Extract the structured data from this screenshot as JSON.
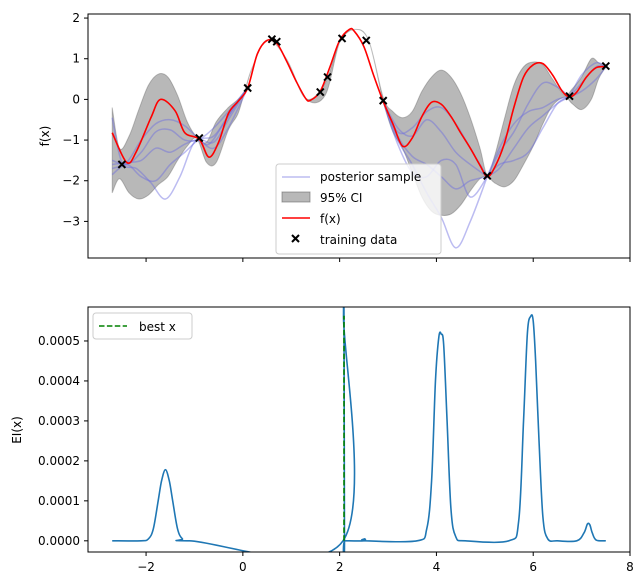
{
  "chart_data": [
    {
      "type": "line",
      "ylabel": "f(x)",
      "xlabel": "",
      "xlim": [
        -3.2,
        8.0
      ],
      "ylim": [
        -3.9,
        2.1
      ],
      "yticks": [
        -3,
        -2,
        -1,
        0,
        1,
        2
      ],
      "ytick_labels": [
        "−3",
        "−2",
        "−1",
        "0",
        "1",
        "2"
      ],
      "xticks": [
        -2,
        0,
        2,
        4,
        6,
        8
      ],
      "xtick_labels_shown": false,
      "legend_position": "lower center",
      "legend": {
        "sample": "posterior sample",
        "ci": "95% CI",
        "f": "f(x)",
        "train": "training data"
      },
      "colors": {
        "f": "#ff0000",
        "sample": "#6a6ae0",
        "ci": "#9a9a9a",
        "train": "#000000"
      },
      "f_curve": {
        "x": [
          -2.7,
          -2.4,
          -2.2,
          -1.9,
          -1.7,
          -1.4,
          -1.2,
          -0.9,
          -0.7,
          -0.5,
          -0.3,
          -0.1,
          0.1,
          0.3,
          0.5,
          0.7,
          0.9,
          1.1,
          1.3,
          1.4,
          1.6,
          1.8,
          2.0,
          2.2,
          2.3,
          2.5,
          2.7,
          2.9,
          3.1,
          3.3,
          3.5,
          3.7,
          3.9,
          4.1,
          4.3,
          4.5,
          4.7,
          4.9,
          5.05,
          5.2,
          5.4,
          5.6,
          5.8,
          6.0,
          6.2,
          6.4,
          6.6,
          6.75,
          6.9,
          7.1,
          7.3,
          7.5
        ],
        "y": [
          -0.82,
          -1.55,
          -1.28,
          -0.45,
          0.0,
          -0.28,
          -0.82,
          -0.98,
          -1.42,
          -1.05,
          -0.35,
          -0.05,
          0.28,
          1.12,
          1.45,
          1.38,
          0.95,
          0.45,
          0.02,
          -0.02,
          0.2,
          0.8,
          1.45,
          1.72,
          1.68,
          1.3,
          0.6,
          -0.05,
          -0.6,
          -1.15,
          -0.95,
          -0.42,
          -0.07,
          -0.12,
          -0.42,
          -0.82,
          -1.2,
          -1.62,
          -1.9,
          -1.68,
          -1.1,
          -0.2,
          0.55,
          0.85,
          0.88,
          0.6,
          0.2,
          0.06,
          0.18,
          0.55,
          0.78,
          0.8
        ]
      },
      "ci_band": {
        "x": [
          -2.7,
          -2.55,
          -2.35,
          -2.15,
          -1.95,
          -1.75,
          -1.55,
          -1.35,
          -1.15,
          -0.95,
          -0.75,
          -0.55,
          -0.3,
          -0.1,
          0.05,
          0.2,
          0.5,
          0.9,
          1.3,
          1.7,
          2.0,
          2.3,
          2.6,
          2.9,
          3.1,
          3.3,
          3.5,
          3.7,
          3.9,
          4.1,
          4.3,
          4.5,
          4.7,
          4.9,
          5.05,
          5.2,
          5.4,
          5.6,
          5.8,
          6.0,
          6.2,
          6.4,
          6.65,
          6.8,
          7.0,
          7.2,
          7.35,
          7.5
        ],
        "upper": [
          -0.2,
          -1.2,
          -0.9,
          -0.25,
          0.35,
          0.62,
          0.55,
          0.1,
          -0.55,
          -0.93,
          -1.05,
          -0.55,
          -0.2,
          0.0,
          0.25,
          0.8,
          1.46,
          1.0,
          0.02,
          0.4,
          1.4,
          1.72,
          1.45,
          0.05,
          -0.3,
          -0.45,
          -0.3,
          0.2,
          0.55,
          0.72,
          0.55,
          0.15,
          -0.45,
          -1.2,
          -1.86,
          -1.4,
          -0.5,
          0.35,
          0.8,
          0.92,
          0.85,
          0.5,
          0.1,
          0.25,
          0.55,
          1.0,
          0.9,
          0.8
        ],
        "lower": [
          -2.3,
          -1.95,
          -2.3,
          -2.45,
          -2.35,
          -2.1,
          -1.9,
          -1.5,
          -1.15,
          -0.96,
          -1.55,
          -1.55,
          -0.75,
          -0.35,
          0.25,
          0.8,
          1.46,
          1.0,
          0.02,
          0.1,
          1.4,
          1.72,
          1.45,
          -0.05,
          -0.8,
          -1.2,
          -1.8,
          -2.4,
          -2.75,
          -2.85,
          -2.82,
          -2.6,
          -2.25,
          -1.95,
          -1.9,
          -2.05,
          -2.15,
          -2.0,
          -1.6,
          -1.15,
          -0.6,
          -0.15,
          0.06,
          -0.1,
          -0.25,
          0.0,
          0.5,
          0.8
        ]
      },
      "posterior_samples": [
        {
          "x": [
            -2.7,
            -2.5,
            -2.2,
            -1.9,
            -1.6,
            -1.3,
            -1.0,
            -0.7,
            -0.4,
            -0.1,
            0.1
          ],
          "y": [
            -0.45,
            -1.55,
            -1.7,
            -2.05,
            -2.45,
            -1.9,
            -1.05,
            -1.1,
            -0.6,
            -0.05,
            0.28
          ]
        },
        {
          "x": [
            -2.7,
            -2.4,
            -2.1,
            -1.8,
            -1.5,
            -1.2,
            -0.9,
            -0.6,
            -0.3,
            0.1
          ],
          "y": [
            -1.5,
            -1.6,
            -1.3,
            -0.8,
            -0.75,
            -1.0,
            -0.98,
            -0.7,
            -0.3,
            0.28
          ]
        },
        {
          "x": [
            -2.7,
            -2.4,
            -2.1,
            -1.8,
            -1.5,
            -1.2,
            -0.9,
            -0.6,
            -0.3,
            0.1
          ],
          "y": [
            -1.7,
            -1.55,
            -1.0,
            -0.6,
            -0.5,
            -0.65,
            -0.98,
            -1.2,
            -0.7,
            0.28
          ]
        },
        {
          "x": [
            -2.7,
            -2.4,
            -2.1,
            -1.8,
            -1.5,
            -1.2,
            -0.9,
            -0.6,
            -0.3,
            0.1
          ],
          "y": [
            -1.85,
            -1.6,
            -1.9,
            -2.0,
            -1.6,
            -1.3,
            -0.98,
            -0.9,
            -0.4,
            0.28
          ]
        },
        {
          "x": [
            -2.7,
            -2.4,
            -2.1,
            -1.8,
            -1.5,
            -1.2,
            -0.9,
            -0.6,
            -0.3,
            0.1
          ],
          "y": [
            -1.6,
            -1.55,
            -1.5,
            -1.2,
            -1.3,
            -1.1,
            -0.98,
            -1.05,
            -0.5,
            0.28
          ]
        },
        {
          "x": [
            2.9,
            3.2,
            3.5,
            3.8,
            4.1,
            4.4,
            4.7,
            5.05
          ],
          "y": [
            -0.05,
            -1.0,
            -1.6,
            -2.3,
            -2.9,
            -3.65,
            -3.0,
            -1.9
          ]
        },
        {
          "x": [
            2.9,
            3.2,
            3.5,
            3.8,
            4.1,
            4.4,
            4.7,
            5.05
          ],
          "y": [
            -0.05,
            -0.7,
            -0.9,
            -0.5,
            -0.8,
            -1.3,
            -1.6,
            -1.9
          ]
        },
        {
          "x": [
            2.9,
            3.2,
            3.5,
            3.8,
            4.1,
            4.4,
            4.7,
            5.05
          ],
          "y": [
            -0.05,
            -0.9,
            -1.4,
            -1.6,
            -1.9,
            -2.2,
            -2.0,
            -1.9
          ]
        },
        {
          "x": [
            2.9,
            3.2,
            3.5,
            3.8,
            4.1,
            4.4,
            4.7,
            5.05
          ],
          "y": [
            -0.05,
            -0.8,
            -0.7,
            -0.3,
            -0.2,
            -0.6,
            -1.2,
            -1.9
          ]
        },
        {
          "x": [
            2.9,
            3.2,
            3.5,
            3.8,
            4.1,
            4.4,
            4.7,
            5.05
          ],
          "y": [
            -0.05,
            -1.1,
            -1.8,
            -1.9,
            -1.5,
            -1.6,
            -2.4,
            -1.9
          ]
        },
        {
          "x": [
            5.05,
            5.3,
            5.6,
            5.9,
            6.2,
            6.5,
            6.75
          ],
          "y": [
            -1.9,
            -1.2,
            -0.6,
            -0.3,
            -0.2,
            0.0,
            0.06
          ]
        },
        {
          "x": [
            5.05,
            5.3,
            5.6,
            5.9,
            6.2,
            6.5,
            6.75
          ],
          "y": [
            -1.9,
            -1.6,
            -1.5,
            -1.3,
            -0.7,
            -0.1,
            0.06
          ]
        },
        {
          "x": [
            5.05,
            5.3,
            5.6,
            5.9,
            6.2,
            6.5,
            6.75
          ],
          "y": [
            -1.9,
            -1.3,
            -0.8,
            -0.1,
            0.4,
            0.3,
            0.06
          ]
        },
        {
          "x": [
            5.05,
            5.3,
            5.6,
            5.9,
            6.2,
            6.5,
            6.75
          ],
          "y": [
            -1.9,
            -1.7,
            -1.2,
            -0.7,
            -0.4,
            -0.1,
            0.06
          ]
        },
        {
          "x": [
            6.75,
            7.0,
            7.3,
            7.5
          ],
          "y": [
            0.06,
            0.6,
            0.9,
            0.8
          ]
        },
        {
          "x": [
            6.75,
            7.0,
            7.3,
            7.5
          ],
          "y": [
            0.06,
            0.2,
            0.5,
            0.8
          ]
        },
        {
          "x": [
            6.75,
            7.0,
            7.3,
            7.5
          ],
          "y": [
            0.06,
            0.4,
            0.8,
            0.8
          ]
        }
      ],
      "training_data": {
        "x": [
          -2.5,
          -0.9,
          0.1,
          0.6,
          0.7,
          1.6,
          1.75,
          2.05,
          2.55,
          2.9,
          5.05,
          6.75,
          7.5
        ],
        "y": [
          -1.6,
          -0.95,
          0.28,
          1.48,
          1.42,
          0.18,
          0.55,
          1.5,
          1.45,
          -0.03,
          -1.88,
          0.08,
          0.82
        ]
      }
    },
    {
      "type": "line",
      "ylabel": "EI(x)",
      "xlabel": "",
      "xlim": [
        -3.2,
        8.0
      ],
      "ylim": [
        -2.8e-05,
        0.000585
      ],
      "yticks": [
        0.0,
        0.0001,
        0.0002,
        0.0003,
        0.0004,
        0.0005
      ],
      "ytick_labels": [
        "0.0000",
        "0.0001",
        "0.0002",
        "0.0003",
        "0.0004",
        "0.0005"
      ],
      "xticks": [
        -2,
        0,
        2,
        4,
        6,
        8
      ],
      "xtick_labels": [
        "−2",
        "0",
        "2",
        "4",
        "6",
        "8"
      ],
      "legend_position": "upper left",
      "legend": {
        "best": "best x"
      },
      "colors": {
        "ei": "#1f77b4",
        "best": "#008000"
      },
      "ei_curve": {
        "x": [
          -2.7,
          -2.1,
          -1.95,
          -1.85,
          -1.75,
          -1.68,
          -1.6,
          -1.52,
          -1.45,
          -1.35,
          -1.25,
          -1.1,
          2.07,
          2.08,
          2.09,
          2.1,
          2.11,
          2.5,
          2.52,
          2.54,
          3.6,
          3.8,
          3.9,
          3.98,
          4.05,
          4.1,
          4.15,
          4.22,
          4.3,
          4.4,
          4.6,
          5.5,
          5.7,
          5.8,
          5.88,
          5.95,
          6.0,
          6.05,
          6.12,
          6.2,
          6.3,
          6.5,
          6.9,
          7.05,
          7.12,
          7.17,
          7.22,
          7.3,
          7.5
        ],
        "y": [
          0.0,
          0.0,
          5e-06,
          3e-05,
          0.0001,
          0.00015,
          0.000178,
          0.00015,
          0.0001,
          3e-05,
          5e-06,
          0.0,
          0.0,
          0.00056,
          0.00056,
          0.0,
          0.0,
          0.0,
          5e-06,
          0.0,
          0.0,
          3e-05,
          0.00015,
          0.0004,
          0.00051,
          0.000517,
          0.00049,
          0.0003,
          8e-05,
          1e-05,
          0.0,
          0.0,
          5e-05,
          0.0003,
          0.00052,
          0.000562,
          0.00055,
          0.00045,
          0.00025,
          6e-05,
          5e-06,
          0.0,
          0.0,
          2e-05,
          4.2e-05,
          4e-05,
          2e-05,
          2e-06,
          0.0
        ]
      },
      "best_x": 2.09
    }
  ]
}
